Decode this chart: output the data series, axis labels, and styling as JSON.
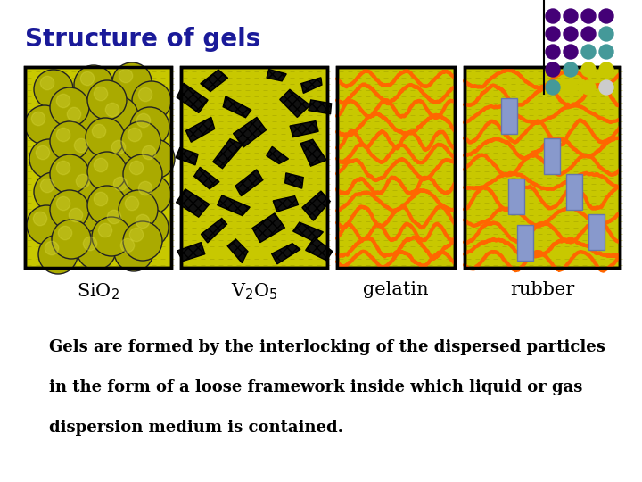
{
  "title": "Structure of gels",
  "title_color": "#1a1a99",
  "title_fontsize": 20,
  "bg_color": "#FFFFFF",
  "panel_bg": "#c8c800",
  "panel_border": "#000000",
  "sphere_color": "#aaaa00",
  "sphere_edge": "#222222",
  "shard_face": "#111111",
  "orange_line": "#ff6600",
  "blue_rect": "#8899cc",
  "body_text_line1": "Gels are formed by the interlocking of the dispersed particles",
  "body_text_line2": "in the form of a loose framework inside which liquid or gas",
  "body_text_line3": "dispersion medium is contained.",
  "body_fontsize": 13,
  "label_fontsize": 15,
  "dot_grid": [
    [
      "#440077",
      "#440077",
      "#440077"
    ],
    [
      "#440077",
      "#440077",
      "#440077"
    ],
    [
      "#440077",
      "#440077",
      "#449999"
    ],
    [
      "#440077",
      "#449999",
      "#449999"
    ],
    [
      "#449999",
      "#c8c800",
      "#c8c800"
    ],
    [
      "#c8c800",
      "#c8c800",
      "#cccccc"
    ]
  ]
}
